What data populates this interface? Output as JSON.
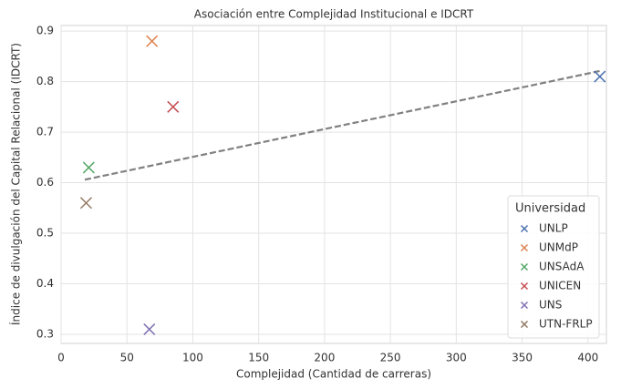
{
  "chart_data": {
    "type": "scatter",
    "title": "Asociación entre Complejidad Institucional e IDCRT",
    "x_label": "Complejidad (Cantidad de carreras)",
    "y_label": "Índice de divulgación del Capital Relacional (IDCRT)",
    "legend_title": "Universidad",
    "legend_position": "lower right",
    "grid": true,
    "xlim": [
      0,
      414
    ],
    "ylim": [
      0.282,
      0.911
    ],
    "xticks": [
      0,
      50,
      100,
      150,
      200,
      250,
      300,
      350,
      400
    ],
    "yticks": [
      0.3,
      0.4,
      0.5,
      0.6,
      0.7,
      0.8,
      0.9
    ],
    "series": [
      {
        "name": "UNLP",
        "color": "#4c72b0",
        "x": [
          409
        ],
        "values": [
          0.81
        ]
      },
      {
        "name": "UNMdP",
        "color": "#dd8452",
        "x": [
          69
        ],
        "values": [
          0.88
        ]
      },
      {
        "name": "UNSAdA",
        "color": "#55a868",
        "x": [
          21
        ],
        "values": [
          0.63
        ]
      },
      {
        "name": "UNICEN",
        "color": "#c44e52",
        "x": [
          85
        ],
        "values": [
          0.75
        ]
      },
      {
        "name": "UNS",
        "color": "#8172b3",
        "x": [
          67
        ],
        "values": [
          0.31
        ]
      },
      {
        "name": "UTN-FRLP",
        "color": "#937860",
        "x": [
          19
        ],
        "values": [
          0.56
        ]
      }
    ],
    "trendline": {
      "color": "#808080",
      "x": [
        18,
        409
      ],
      "values": [
        0.606,
        0.821
      ]
    }
  }
}
